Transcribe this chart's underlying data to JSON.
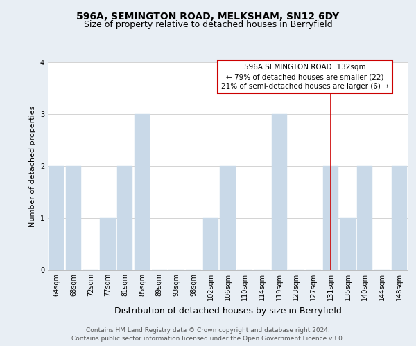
{
  "title": "596A, SEMINGTON ROAD, MELKSHAM, SN12 6DY",
  "subtitle": "Size of property relative to detached houses in Berryfield",
  "xlabel": "Distribution of detached houses by size in Berryfield",
  "ylabel": "Number of detached properties",
  "footer_lines": [
    "Contains HM Land Registry data © Crown copyright and database right 2024.",
    "Contains public sector information licensed under the Open Government Licence v3.0."
  ],
  "bar_labels": [
    "64sqm",
    "68sqm",
    "72sqm",
    "77sqm",
    "81sqm",
    "85sqm",
    "89sqm",
    "93sqm",
    "98sqm",
    "102sqm",
    "106sqm",
    "110sqm",
    "114sqm",
    "119sqm",
    "123sqm",
    "127sqm",
    "131sqm",
    "135sqm",
    "140sqm",
    "144sqm",
    "148sqm"
  ],
  "bar_values": [
    2,
    2,
    0,
    1,
    2,
    3,
    0,
    0,
    0,
    1,
    2,
    0,
    0,
    3,
    0,
    0,
    2,
    1,
    2,
    0,
    2
  ],
  "bar_color": "#c9d9e8",
  "bar_edge_color": "#c9d9e8",
  "reference_line_x_label": "131sqm",
  "reference_line_color": "#cc0000",
  "annotation_title": "596A SEMINGTON ROAD: 132sqm",
  "annotation_line1": "← 79% of detached houses are smaller (22)",
  "annotation_line2": "21% of semi-detached houses are larger (6) →",
  "annotation_box_color": "#ffffff",
  "annotation_box_edge_color": "#cc0000",
  "ylim": [
    0,
    4
  ],
  "yticks": [
    0,
    1,
    2,
    3,
    4
  ],
  "background_color": "#e8eef4",
  "plot_bg_color": "#ffffff",
  "grid_color": "#cccccc",
  "title_fontsize": 10,
  "subtitle_fontsize": 9,
  "xlabel_fontsize": 9,
  "ylabel_fontsize": 8,
  "tick_fontsize": 7,
  "annotation_title_fontsize": 8,
  "annotation_body_fontsize": 7.5,
  "footer_fontsize": 6.5
}
